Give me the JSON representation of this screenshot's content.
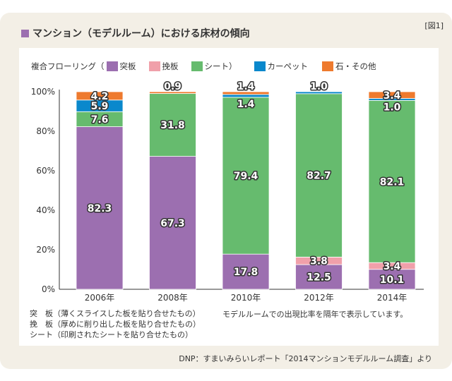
{
  "figure_label": "[図1]",
  "chart_data": {
    "type": "bar",
    "stacked": true,
    "title": "マンション（モデルルーム）における床材の傾向",
    "legend_prefix": "複合フローリング（",
    "legend_suffix": "）",
    "legend_placement": "top",
    "categories": [
      "2006年",
      "2008年",
      "2010年",
      "2012年",
      "2014年"
    ],
    "ylim": [
      0,
      100
    ],
    "yticks": [
      "0%",
      "20%",
      "40%",
      "60%",
      "80%",
      "100%"
    ],
    "series": [
      {
        "name": "突板",
        "color": "#9c6fb0",
        "values": [
          82.3,
          67.3,
          17.8,
          12.5,
          10.1
        ],
        "labels": [
          "82.3",
          "67.3",
          "17.8",
          "12.5",
          "10.1"
        ]
      },
      {
        "name": "挽板",
        "color": "#f0a0aa",
        "values": [
          0,
          0,
          0,
          3.8,
          3.4
        ],
        "labels": [
          "",
          "",
          "",
          "3.8",
          "3.4"
        ]
      },
      {
        "name": "シート",
        "color": "#66bb6e",
        "values": [
          7.6,
          31.8,
          79.4,
          82.7,
          82.1
        ],
        "labels": [
          "7.6",
          "31.8",
          "79.4",
          "82.7",
          "82.1"
        ]
      },
      {
        "name": "カーペット",
        "color": "#0a88cc",
        "values": [
          5.9,
          0,
          1.4,
          1.0,
          1.0
        ],
        "labels": [
          "5.9",
          "",
          "1.4",
          "1.0",
          "1.0"
        ]
      },
      {
        "name": "石・その他",
        "color": "#ee7a2e",
        "values": [
          4.2,
          0.9,
          1.4,
          0,
          3.4
        ],
        "labels": [
          "4.2",
          "0.9",
          "1.4",
          "",
          "3.4"
        ]
      }
    ]
  },
  "notes": [
    "突　板（薄くスライスした板を貼り合せたもの）",
    "挽　板（厚めに削り出した板を貼り合せたもの）",
    "シート（印刷されたシートを貼り合せたもの）"
  ],
  "note_right": "モデルルームでの出現比率を隔年で表示しています。",
  "source": "DNP：すまいみらいレポート「2014マンションモデルルーム調査」より"
}
